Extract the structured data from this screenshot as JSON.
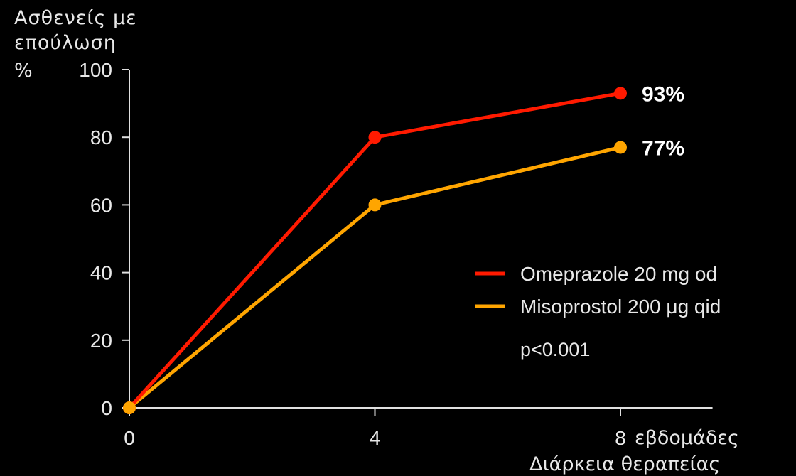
{
  "chart_data": {
    "type": "line",
    "ylabel_lines": [
      "Ασθενείς με",
      "επούλωση",
      "%"
    ],
    "xlabel_unit": "εβδομάδες",
    "xlabel": "Διάρκεια θεραπείας",
    "x": [
      0,
      4,
      8
    ],
    "x_tick_labels": [
      "0",
      "4",
      "8"
    ],
    "y_ticks": [
      0,
      20,
      40,
      60,
      80,
      100
    ],
    "ylim": [
      0,
      100
    ],
    "xlim": [
      0,
      9.5
    ],
    "grid": false,
    "legend_position": "right",
    "series": [
      {
        "name": "Omeprazole 20 mg od",
        "values": [
          0,
          80,
          93
        ],
        "color": "#ff1a00",
        "end_label": "93%"
      },
      {
        "name": "Misoprostol 200 μg qid",
        "values": [
          0,
          60,
          77
        ],
        "color": "#ffa500",
        "end_label": "77%"
      }
    ],
    "annotation": "p<0.001"
  },
  "colors": {
    "background": "#000000",
    "axis": "#e0e0e0",
    "text": "#e8e8e8"
  }
}
